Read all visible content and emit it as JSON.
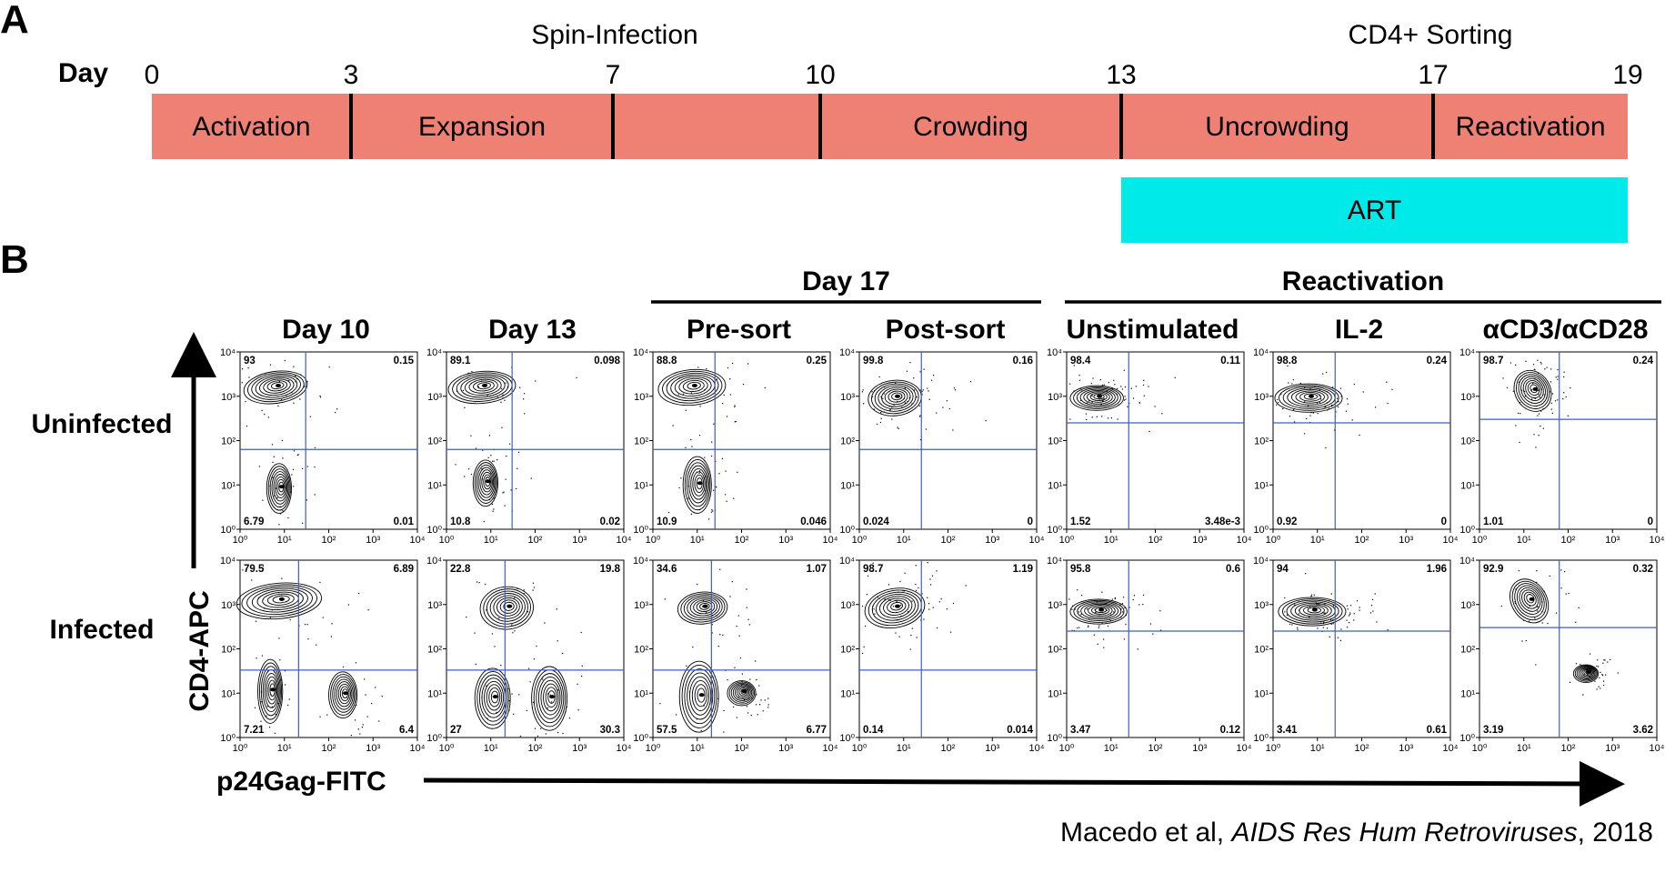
{
  "panelA": {
    "letter": "A",
    "day_label": "Day",
    "above_labels": [
      {
        "text": "Spin-Infection",
        "day": 10
      },
      {
        "text": "CD4+ Sorting",
        "day": 17
      }
    ],
    "ticks": [
      {
        "label": "0",
        "day": 0
      },
      {
        "label": "3",
        "day": 3
      },
      {
        "label": "7",
        "day": 7
      },
      {
        "label": "10",
        "day": 10
      },
      {
        "label": "13",
        "day": 13
      },
      {
        "label": "17",
        "day": 17
      },
      {
        "label": "19",
        "day": 19
      }
    ],
    "segments": [
      {
        "label": "Activation",
        "start": 0,
        "end": 3
      },
      {
        "label": "Expansion",
        "start": 3,
        "end": 7
      },
      {
        "label": "",
        "start": 7,
        "end": 10
      },
      {
        "label": "Crowding",
        "start": 10,
        "end": 13
      },
      {
        "label": "Uncrowding",
        "start": 13,
        "end": 17
      },
      {
        "label": "Reactivation",
        "start": 17,
        "end": 19
      }
    ],
    "art": {
      "label": "ART",
      "start": 13,
      "end": 19
    },
    "colors": {
      "bar": "#ee8074",
      "art": "#00eaea"
    }
  },
  "panelB": {
    "letter": "B",
    "groups": [
      {
        "label": "Day 17",
        "from": 2,
        "to": 3
      },
      {
        "label": "Reactivation",
        "from": 4,
        "to": 6
      }
    ],
    "columns": [
      "Day 10",
      "Day 13",
      "Pre-sort",
      "Post-sort",
      "Unstimulated",
      "IL-2",
      "αCD3/αCD28"
    ],
    "rows": [
      "Uninfected",
      "Infected"
    ],
    "y_axis_label": "CD4-APC",
    "x_axis_label": "p24Gag-FITC",
    "tick_labels": [
      "10⁰",
      "10¹",
      "10²",
      "10³",
      "10⁴"
    ],
    "gate_color": "#3f5fbf",
    "plots": [
      [
        {
          "q": [
            "93",
            "0.15",
            "6.79",
            "0.01"
          ]
        },
        {
          "q": [
            "89.1",
            "0.098",
            "10.8",
            "0.02"
          ]
        },
        {
          "q": [
            "88.8",
            "0.25",
            "10.9",
            "0.046"
          ]
        },
        {
          "q": [
            "99.8",
            "0.16",
            "0.024",
            "0"
          ]
        },
        {
          "q": [
            "98.4",
            "0.11",
            "1.52",
            "3.48e-3"
          ]
        },
        {
          "q": [
            "98.8",
            "0.24",
            "0.92",
            "0"
          ]
        },
        {
          "q": [
            "98.7",
            "0.24",
            "1.01",
            "0"
          ]
        }
      ],
      [
        {
          "q": [
            "79.5",
            "6.89",
            "7.21",
            "6.4"
          ]
        },
        {
          "q": [
            "22.8",
            "19.8",
            "27",
            "30.3"
          ]
        },
        {
          "q": [
            "34.6",
            "1.07",
            "57.5",
            "6.77"
          ]
        },
        {
          "q": [
            "98.7",
            "1.19",
            "0.14",
            "0.014"
          ]
        },
        {
          "q": [
            "95.8",
            "0.6",
            "3.47",
            "0.12"
          ]
        },
        {
          "q": [
            "94",
            "1.96",
            "3.41",
            "0.61"
          ]
        },
        {
          "q": [
            "92.9",
            "0.32",
            "3.19",
            "3.62"
          ]
        }
      ]
    ]
  },
  "citation": {
    "authors": "Macedo et al, ",
    "journal": "AIDS Res Hum Retroviruses",
    "year": ", 2018"
  }
}
